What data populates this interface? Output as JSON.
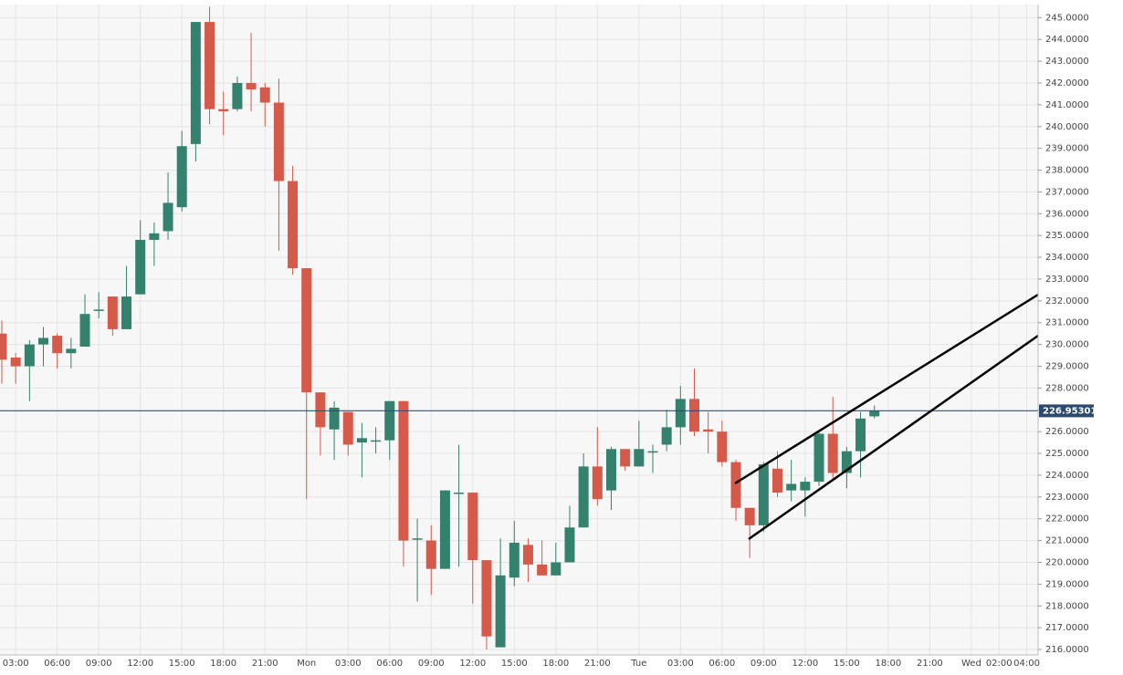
{
  "chart_data": {
    "type": "candlestick",
    "categories": [
      null,
      "03:00",
      null,
      null,
      "06:00",
      null,
      null,
      "09:00",
      null,
      null,
      "12:00",
      null,
      null,
      "15:00",
      null,
      null,
      "18:00",
      null,
      null,
      "21:00",
      null,
      null,
      "Mon",
      null,
      null,
      "03:00",
      null,
      null,
      "06:00",
      null,
      null,
      "09:00",
      null,
      null,
      "12:00",
      null,
      null,
      "15:00",
      null,
      null,
      "18:00",
      null,
      null,
      "21:00",
      null,
      null,
      "Tue",
      null,
      null,
      "03:00",
      null,
      null,
      "06:00",
      null,
      null,
      "09:00",
      null,
      null,
      "12:00",
      null,
      null,
      "15:00",
      null,
      null,
      "18:00",
      null,
      null,
      "21:00",
      null,
      null,
      "Wed",
      null,
      "02:00",
      null,
      "04:00"
    ],
    "open": [
      230.5,
      229.4,
      229.0,
      230.0,
      230.4,
      229.6,
      229.9,
      231.6,
      232.2,
      230.7,
      232.3,
      234.8,
      235.2,
      236.3,
      239.2,
      244.8,
      240.8,
      240.8,
      242.0,
      241.8,
      241.1,
      237.5,
      233.5,
      227.8,
      226.1,
      226.9,
      225.5,
      225.6,
      225.6,
      227.4,
      221.1,
      221.0,
      219.7,
      223.2,
      223.2,
      220.1,
      216.1,
      219.3,
      220.8,
      219.9,
      219.4,
      220.0,
      221.6,
      224.4,
      223.3,
      225.2,
      224.4,
      225.1,
      225.4,
      226.2,
      227.5,
      226.1,
      226.0,
      224.6,
      222.5,
      221.7,
      224.3,
      223.3,
      223.3,
      223.7,
      225.9,
      224.1,
      225.1,
      226.7,
      null,
      null,
      null,
      null,
      null,
      null,
      null,
      null,
      null,
      null,
      null
    ],
    "high": [
      231.1,
      229.6,
      230.2,
      230.8,
      230.5,
      230.3,
      232.3,
      232.4,
      232.2,
      233.6,
      235.7,
      235.6,
      237.9,
      239.8,
      244.8,
      245.5,
      241.6,
      242.3,
      244.3,
      242.0,
      242.2,
      238.2,
      233.5,
      227.8,
      227.4,
      226.9,
      226.4,
      226.2,
      227.4,
      227.4,
      222.0,
      221.7,
      223.3,
      225.4,
      223.2,
      220.1,
      221.1,
      221.9,
      221.1,
      221.0,
      220.9,
      222.6,
      225.0,
      226.2,
      225.3,
      225.2,
      226.5,
      225.4,
      227.0,
      228.1,
      228.9,
      226.9,
      226.5,
      224.7,
      222.5,
      224.6,
      225.1,
      224.7,
      223.9,
      226.0,
      227.6,
      225.3,
      226.9,
      227.2,
      null,
      null,
      null,
      null,
      null,
      null,
      null,
      null,
      null,
      null,
      null
    ],
    "low": [
      228.2,
      228.2,
      227.4,
      229.0,
      228.9,
      228.9,
      229.9,
      231.2,
      230.4,
      230.7,
      232.3,
      233.6,
      234.8,
      236.1,
      238.4,
      240.1,
      239.6,
      240.7,
      240.7,
      240.0,
      234.3,
      233.2,
      222.9,
      224.9,
      224.7,
      224.9,
      223.9,
      225.0,
      224.7,
      219.8,
      218.2,
      218.5,
      219.7,
      219.8,
      218.1,
      216.0,
      216.1,
      218.9,
      219.1,
      219.4,
      219.4,
      220.0,
      221.6,
      222.6,
      222.4,
      224.2,
      224.4,
      224.1,
      225.1,
      225.4,
      225.8,
      225.0,
      224.4,
      221.9,
      220.2,
      221.4,
      223.0,
      222.8,
      222.1,
      223.5,
      223.8,
      223.4,
      223.9,
      226.6,
      null,
      null,
      null,
      null,
      null,
      null,
      null,
      null,
      null,
      null,
      null
    ],
    "close": [
      229.3,
      229.0,
      230.0,
      230.3,
      229.6,
      229.8,
      231.4,
      231.6,
      230.7,
      232.2,
      234.8,
      235.1,
      236.5,
      239.1,
      244.8,
      240.8,
      240.7,
      242.0,
      241.7,
      241.1,
      237.5,
      233.5,
      227.8,
      226.2,
      227.1,
      225.4,
      225.7,
      225.6,
      227.4,
      221.0,
      221.1,
      219.7,
      223.3,
      223.2,
      220.1,
      216.6,
      219.4,
      220.9,
      219.9,
      219.4,
      220.0,
      221.6,
      224.4,
      222.9,
      225.2,
      224.4,
      225.2,
      225.1,
      226.2,
      227.5,
      226.0,
      226.0,
      224.6,
      222.5,
      221.7,
      224.5,
      223.2,
      223.6,
      223.7,
      225.9,
      224.1,
      225.1,
      226.6,
      226.95,
      null,
      null,
      null,
      null,
      null,
      null,
      null,
      null,
      null,
      null,
      null
    ],
    "up_color": "#34826d",
    "down_color": "#d55a4a",
    "ylim": [
      215.75,
      245.6
    ],
    "yticks": [
      {
        "value": 216,
        "label": "216.0000"
      },
      {
        "value": 217,
        "label": "217.0000"
      },
      {
        "value": 218,
        "label": "218.0000"
      },
      {
        "value": 219,
        "label": "219.0000"
      },
      {
        "value": 220,
        "label": "220.0000"
      },
      {
        "value": 221,
        "label": "221.0000"
      },
      {
        "value": 222,
        "label": "222.0000"
      },
      {
        "value": 223,
        "label": "223.0000"
      },
      {
        "value": 224,
        "label": "224.0000"
      },
      {
        "value": 225,
        "label": "225.0000"
      },
      {
        "value": 226,
        "label": "226.0000"
      },
      {
        "value": 227,
        "label": "227.0000"
      },
      {
        "value": 228,
        "label": "228.0000"
      },
      {
        "value": 229,
        "label": "229.0000"
      },
      {
        "value": 230,
        "label": "230.0000"
      },
      {
        "value": 231,
        "label": "231.0000"
      },
      {
        "value": 232,
        "label": "232.0000"
      },
      {
        "value": 233,
        "label": "233.0000"
      },
      {
        "value": 234,
        "label": "234.0000"
      },
      {
        "value": 235,
        "label": "235.0000"
      },
      {
        "value": 236,
        "label": "236.0000"
      },
      {
        "value": 237,
        "label": "237.0000"
      },
      {
        "value": 238,
        "label": "238.0000"
      },
      {
        "value": 239,
        "label": "239.0000"
      },
      {
        "value": 240,
        "label": "240.0000"
      },
      {
        "value": 241,
        "label": "241.0000"
      },
      {
        "value": 242,
        "label": "242.0000"
      },
      {
        "value": 243,
        "label": "243.0000"
      },
      {
        "value": 244,
        "label": "244.0000"
      },
      {
        "value": 245,
        "label": "245.0000"
      }
    ],
    "last_price": 226.95301,
    "last_price_color": "#2c4a6e",
    "grid": true
  }
}
